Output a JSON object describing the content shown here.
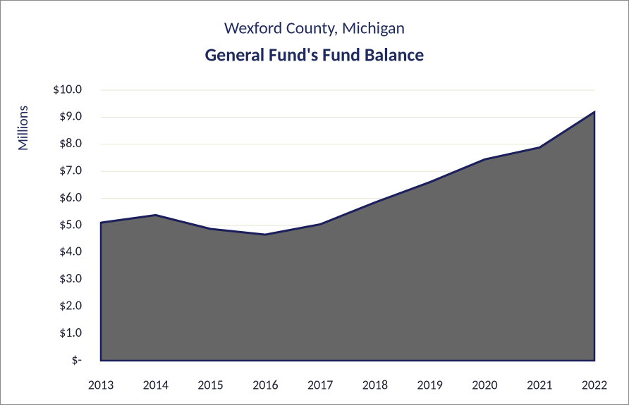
{
  "chart_data": {
    "type": "area",
    "title": "Wexford County, Michigan",
    "subtitle": "General Fund's Fund Balance",
    "y_axis_label": "Millions",
    "categories": [
      "2013",
      "2014",
      "2015",
      "2016",
      "2017",
      "2018",
      "2019",
      "2020",
      "2021",
      "2022"
    ],
    "values": [
      5.1,
      5.38,
      4.87,
      4.66,
      5.04,
      5.85,
      6.6,
      7.44,
      7.88,
      9.19
    ],
    "color": "#666666",
    "line_color": "#1b1f5c",
    "ylim": [
      0,
      10
    ],
    "yticks": [
      {
        "value": 0,
        "label": "$-"
      },
      {
        "value": 1,
        "label": "$1.0"
      },
      {
        "value": 2,
        "label": "$2.0"
      },
      {
        "value": 3,
        "label": "$3.0"
      },
      {
        "value": 4,
        "label": "$4.0"
      },
      {
        "value": 5,
        "label": "$5.0"
      },
      {
        "value": 6,
        "label": "$6.0"
      },
      {
        "value": 7,
        "label": "$7.0"
      },
      {
        "value": 8,
        "label": "$8.0"
      },
      {
        "value": 9,
        "label": "$9.0"
      },
      {
        "value": 10,
        "label": "$10.0"
      }
    ],
    "grid": true
  }
}
